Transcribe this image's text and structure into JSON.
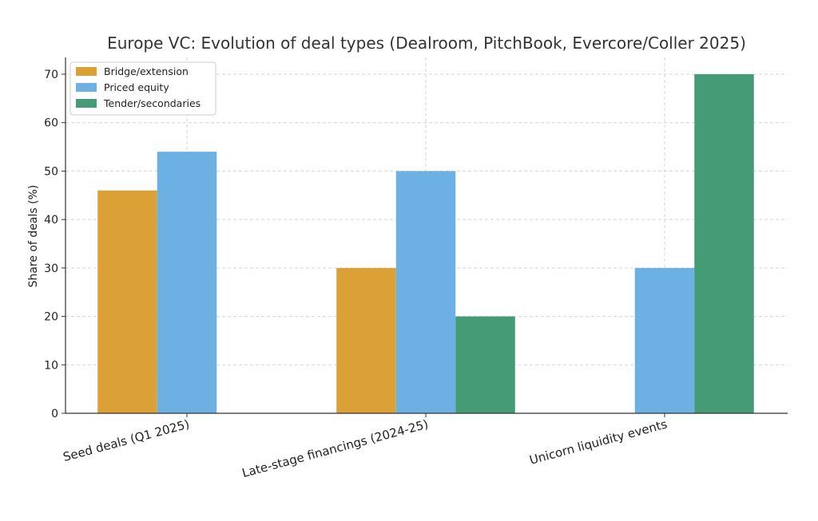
{
  "chart_data": {
    "type": "bar",
    "title": "Europe VC: Evolution of deal types (Dealroom, PitchBook, Evercore/Coller 2025)",
    "xlabel": "",
    "ylabel": "Share of deals (%)",
    "categories": [
      "Seed deals (Q1 2025)",
      "Late-stage financings (2024-25)",
      "Unicorn liquidity events"
    ],
    "series": [
      {
        "name": "Bridge/extension",
        "values": [
          46,
          30,
          0
        ],
        "color": "#dba036"
      },
      {
        "name": "Priced equity",
        "values": [
          54,
          50,
          30
        ],
        "color": "#6cb0e4"
      },
      {
        "name": "Tender/secondaries",
        "values": [
          0,
          20,
          70
        ],
        "color": "#469b77"
      }
    ],
    "ylim": [
      0,
      72
    ],
    "yticks": [
      0,
      10,
      20,
      30,
      40,
      50,
      60,
      70
    ],
    "grid": true,
    "legend_position": "top-left"
  }
}
